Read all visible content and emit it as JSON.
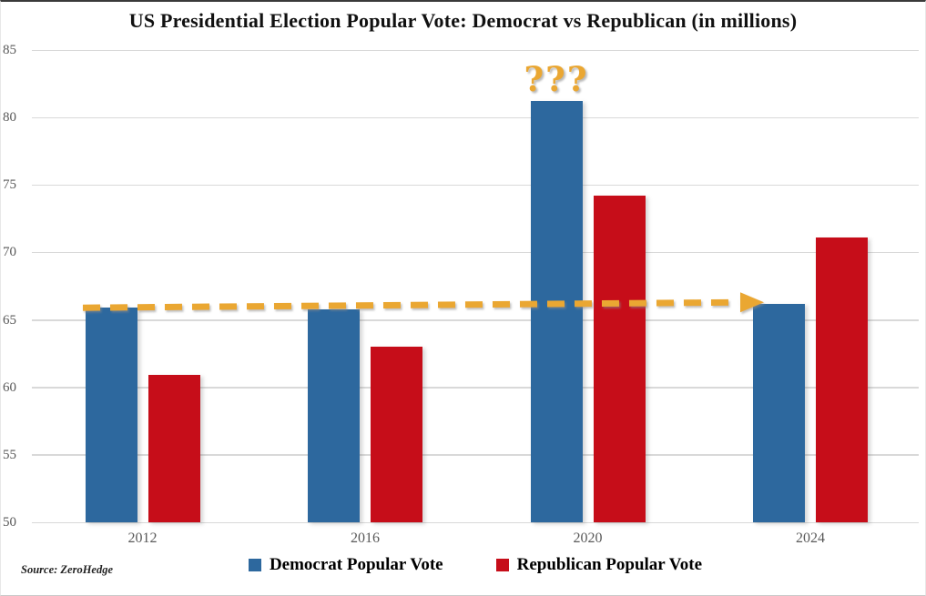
{
  "title": "US Presidential Election Popular Vote: Democrat vs Republican (in millions)",
  "source": "Source: ZeroHedge",
  "annotations": {
    "question_marks": "???",
    "trend_arrow": {
      "description": "gold dashed arrow running horizontally near 66 million from the 2012 Democrat bar to the 2024 Democrat bar",
      "y_start_value": 65.9,
      "y_end_value": 66.3
    }
  },
  "colors": {
    "democrat": "#2d689e",
    "republican": "#c60d19",
    "gold": "#eaa733",
    "gridline": "#d9d9d9",
    "axis_text": "#595959"
  },
  "chart_data": {
    "type": "bar",
    "categories": [
      "2012",
      "2016",
      "2020",
      "2024"
    ],
    "series": [
      {
        "name": "Democrat Popular Vote",
        "color": "#2d689e",
        "values": [
          65.9,
          65.8,
          81.2,
          66.2
        ]
      },
      {
        "name": "Republican Popular Vote",
        "color": "#c60d19",
        "values": [
          60.9,
          63.0,
          74.2,
          71.1
        ]
      }
    ],
    "title": "US Presidential Election Popular Vote: Democrat vs Republican (in millions)",
    "xlabel": "",
    "ylabel": "",
    "ylim": [
      50,
      85
    ],
    "ytick_step": 5,
    "yticks": [
      50,
      55,
      60,
      65,
      70,
      75,
      80,
      85
    ],
    "grid": true,
    "legend_position": "bottom"
  }
}
